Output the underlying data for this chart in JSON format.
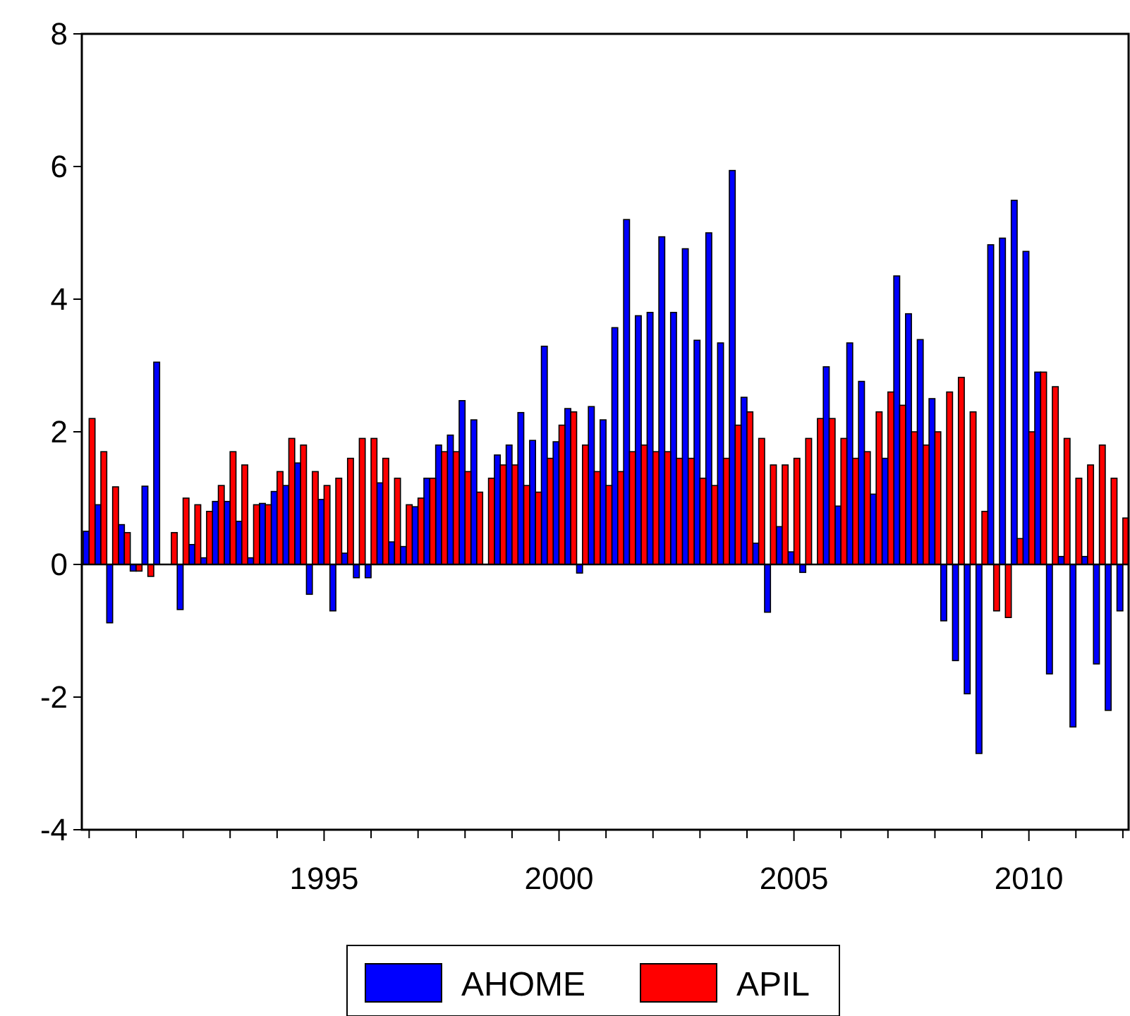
{
  "chart_data": {
    "type": "bar",
    "x": [
      "1990-01",
      "1990-04",
      "1990-07",
      "1990-10",
      "1991-01",
      "1991-04",
      "1991-07",
      "1991-10",
      "1992-01",
      "1992-04",
      "1992-07",
      "1992-10",
      "1993-01",
      "1993-04",
      "1993-07",
      "1993-10",
      "1994-01",
      "1994-04",
      "1994-07",
      "1994-10",
      "1995-01",
      "1995-04",
      "1995-07",
      "1995-10",
      "1996-01",
      "1996-04",
      "1996-07",
      "1996-10",
      "1997-01",
      "1997-04",
      "1997-07",
      "1997-10",
      "1998-01",
      "1998-04",
      "1998-07",
      "1998-10",
      "1999-01",
      "1999-04",
      "1999-07",
      "1999-10",
      "2000-01",
      "2000-04",
      "2000-07",
      "2000-10",
      "2001-01",
      "2001-04",
      "2001-07",
      "2001-10",
      "2002-01",
      "2002-04",
      "2002-07",
      "2002-10",
      "2003-01",
      "2003-04",
      "2003-07",
      "2003-10",
      "2004-01",
      "2004-04",
      "2004-07",
      "2004-10",
      "2005-01",
      "2005-04",
      "2005-07",
      "2005-10",
      "2006-01",
      "2006-04",
      "2006-07",
      "2006-10",
      "2007-01",
      "2007-04",
      "2007-07",
      "2007-10",
      "2008-01",
      "2008-04",
      "2008-07",
      "2008-10",
      "2009-01",
      "2009-04",
      "2009-07",
      "2009-10",
      "2010-01",
      "2010-04",
      "2010-07",
      "2010-10",
      "2011-01",
      "2011-04",
      "2011-07",
      "2011-10",
      "2012-01"
    ],
    "series": [
      {
        "name": "AHOME",
        "color": "#0000ff",
        "values": [
          0.5,
          0.9,
          -0.88,
          0.6,
          -0.1,
          1.18,
          3.05,
          null,
          -0.68,
          0.3,
          0.1,
          0.95,
          0.95,
          0.65,
          0.1,
          0.92,
          1.1,
          1.19,
          1.53,
          -0.45,
          0.98,
          -0.7,
          0.17,
          -0.2,
          -0.2,
          1.23,
          0.34,
          0.27,
          0.87,
          1.3,
          1.8,
          1.95,
          2.47,
          2.18,
          null,
          1.65,
          1.8,
          2.29,
          1.87,
          3.29,
          1.85,
          2.35,
          -0.13,
          2.38,
          2.18,
          3.57,
          5.2,
          3.75,
          3.8,
          4.94,
          3.8,
          4.76,
          3.38,
          5.0,
          3.34,
          5.94,
          2.52,
          0.32,
          -0.72,
          0.57,
          0.19,
          -0.12,
          null,
          2.98,
          0.88,
          3.34,
          2.76,
          1.06,
          1.6,
          4.35,
          3.78,
          3.39,
          2.5,
          -0.85,
          -1.45,
          -1.95,
          -2.85,
          4.82,
          4.92,
          5.49,
          4.72,
          2.9,
          -1.65,
          0.12,
          -2.45,
          0.12,
          -1.5,
          -2.2,
          -0.7
        ]
      },
      {
        "name": "APIL",
        "color": "#ff0000",
        "values": [
          2.2,
          1.7,
          1.17,
          0.48,
          -0.1,
          -0.18,
          null,
          0.48,
          1.0,
          0.9,
          0.8,
          1.19,
          1.7,
          1.5,
          0.9,
          0.9,
          1.4,
          1.9,
          1.8,
          1.4,
          1.19,
          1.3,
          1.6,
          1.9,
          1.9,
          1.6,
          1.3,
          0.9,
          1.0,
          1.3,
          1.7,
          1.7,
          1.4,
          1.09,
          1.3,
          1.5,
          1.5,
          1.19,
          1.09,
          1.6,
          2.1,
          2.3,
          1.8,
          1.4,
          1.19,
          1.4,
          1.7,
          1.8,
          1.7,
          1.7,
          1.6,
          1.6,
          1.3,
          1.19,
          1.6,
          2.1,
          2.3,
          1.9,
          1.5,
          1.5,
          1.6,
          1.9,
          2.2,
          2.2,
          1.9,
          1.6,
          1.7,
          2.3,
          2.6,
          2.4,
          2.0,
          1.8,
          2.0,
          2.6,
          2.82,
          2.3,
          0.8,
          -0.7,
          -0.8,
          0.39,
          2.0,
          2.9,
          2.68,
          1.9,
          1.3,
          1.5,
          1.8,
          1.3,
          0.7
        ]
      }
    ],
    "xlim": [
      "1989-11-05",
      "2012-02-15"
    ],
    "xticks": [
      {
        "value": "1990-01",
        "label": null
      },
      {
        "value": "1991-01",
        "label": null
      },
      {
        "value": "1992-01",
        "label": null
      },
      {
        "value": "1993-01",
        "label": null
      },
      {
        "value": "1994-01",
        "label": null
      },
      {
        "value": "1995-01",
        "label": "1995"
      },
      {
        "value": "1996-01",
        "label": null
      },
      {
        "value": "1997-01",
        "label": null
      },
      {
        "value": "1998-01",
        "label": null
      },
      {
        "value": "1999-01",
        "label": null
      },
      {
        "value": "2000-01",
        "label": "2000"
      },
      {
        "value": "2001-01",
        "label": null
      },
      {
        "value": "2002-01",
        "label": null
      },
      {
        "value": "2003-01",
        "label": null
      },
      {
        "value": "2004-01",
        "label": null
      },
      {
        "value": "2005-01",
        "label": "2005"
      },
      {
        "value": "2006-01",
        "label": null
      },
      {
        "value": "2007-01",
        "label": null
      },
      {
        "value": "2008-01",
        "label": null
      },
      {
        "value": "2009-01",
        "label": null
      },
      {
        "value": "2010-01",
        "label": "2010"
      },
      {
        "value": "2011-01",
        "label": null
      },
      {
        "value": "2012-01",
        "label": null
      }
    ],
    "ylim": [
      -4,
      8
    ],
    "yticks": [
      -4,
      -2,
      0,
      2,
      4,
      6,
      8
    ],
    "ref_lines": [
      {
        "axis": "y",
        "value": 0,
        "color": "#000000"
      }
    ],
    "legend": "bottom"
  }
}
